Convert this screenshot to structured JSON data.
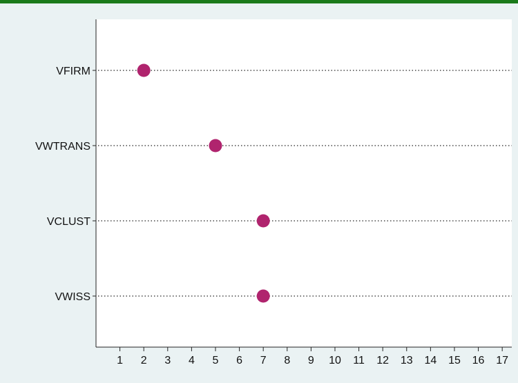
{
  "colors": {
    "background": "#eaf2f3",
    "plot_background": "#ffffff",
    "top_rule": "#1a7a1a",
    "marker": "#b0246e",
    "dotted_line": "#222222"
  },
  "chart_data": {
    "type": "dot",
    "categories": [
      "VFIRM",
      "VWTRANS",
      "VCLUST",
      "VWISS"
    ],
    "values": [
      2,
      5,
      7,
      7
    ],
    "x_ticks": [
      1,
      2,
      3,
      4,
      5,
      6,
      7,
      8,
      9,
      10,
      11,
      12,
      13,
      14,
      15,
      16,
      17
    ],
    "xlim": [
      0,
      17.4
    ],
    "title": "",
    "xlabel": "",
    "ylabel": "",
    "grid": "dotted horizontal guide lines",
    "legend": "none"
  }
}
